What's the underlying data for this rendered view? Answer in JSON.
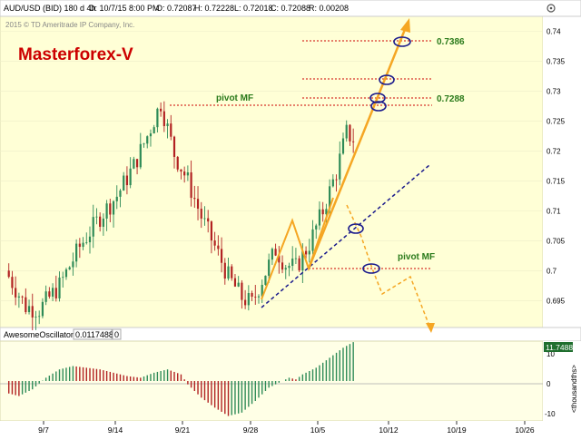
{
  "header": {
    "symbol": "AUD/USD (BID) 180 d 4h",
    "date": "D: 10/7/15 8:00 PM",
    "open": "O: 0.72087",
    "high": "H: 0.72228",
    "low": "L: 0.72018",
    "close": "C: 0.72088",
    "range": "R: 0.00208",
    "copyright": "2015 © TD Ameritrade IP Company, Inc."
  },
  "brand": {
    "text": "Masterforex-V",
    "color": "#cc0000"
  },
  "annotations": {
    "pivot_top": "pivot MF",
    "pivot_bottom": "pivot MF",
    "level_high": "0.7386",
    "level_mid": "0.7288"
  },
  "colors": {
    "price_bg": "#ffffd6",
    "osc_bg": "#ffffe6",
    "up_bar": "#2e8b57",
    "down_bar": "#b22222",
    "fib_line": "#cc0000",
    "projection": "#f5a623",
    "trendline": "#1a1a8c",
    "label_green": "#2a7a1a",
    "badge_bg": "#1f6e2e"
  },
  "oscillator": {
    "title": "AwesomeOscillator",
    "value": "0.0117488",
    "zero": "0",
    "badge": "11.7488",
    "axis_unit": "<thousandths>",
    "ticks": [
      "10",
      "0",
      "-10"
    ]
  },
  "chart_data": {
    "type": "candlestick",
    "symbol": "AUD/USD (BID)",
    "timeframe": "4h",
    "ylim": [
      0.6905,
      0.7425
    ],
    "yticks": [
      "0.74",
      "0.735",
      "0.73",
      "0.725",
      "0.72",
      "0.715",
      "0.71",
      "0.705",
      "0.7",
      "0.695"
    ],
    "xticks": [
      "9/7",
      "9/14",
      "9/21",
      "9/28",
      "10/5",
      "10/12",
      "10/19",
      "10/26"
    ],
    "price_keyframes": [
      [
        0,
        0.7
      ],
      [
        6,
        0.694
      ],
      [
        10,
        0.6935
      ],
      [
        16,
        0.6975
      ],
      [
        22,
        0.704
      ],
      [
        28,
        0.709
      ],
      [
        33,
        0.7125
      ],
      [
        38,
        0.7175
      ],
      [
        42,
        0.7225
      ],
      [
        46,
        0.728
      ],
      [
        50,
        0.7195
      ],
      [
        54,
        0.715
      ],
      [
        58,
        0.709
      ],
      [
        62,
        0.704
      ],
      [
        66,
        0.699
      ],
      [
        70,
        0.6955
      ],
      [
        73,
        0.6945
      ],
      [
        76,
        0.6985
      ],
      [
        80,
        0.7035
      ],
      [
        83,
        0.701
      ],
      [
        86,
        0.7005
      ],
      [
        90,
        0.7045
      ],
      [
        94,
        0.71
      ],
      [
        98,
        0.7165
      ],
      [
        101,
        0.723
      ],
      [
        103,
        0.722
      ]
    ],
    "oscillator_values": [
      [
        0,
        -3.5
      ],
      [
        4,
        -4.5
      ],
      [
        8,
        -2.5
      ],
      [
        12,
        1.0
      ],
      [
        16,
        3.5
      ],
      [
        20,
        4.5
      ],
      [
        24,
        4.0
      ],
      [
        28,
        3.5
      ],
      [
        32,
        2.5
      ],
      [
        36,
        1.5
      ],
      [
        40,
        1.0
      ],
      [
        44,
        2.5
      ],
      [
        48,
        3.5
      ],
      [
        52,
        2.0
      ],
      [
        54,
        -1.0
      ],
      [
        58,
        -5.0
      ],
      [
        62,
        -8.0
      ],
      [
        66,
        -10.5
      ],
      [
        70,
        -9.5
      ],
      [
        74,
        -6.0
      ],
      [
        78,
        -2.0
      ],
      [
        82,
        0.0
      ],
      [
        84,
        1.0
      ],
      [
        86,
        0.5
      ],
      [
        88,
        2.0
      ],
      [
        92,
        4.0
      ],
      [
        96,
        7.0
      ],
      [
        100,
        10.0
      ],
      [
        103,
        11.7
      ]
    ],
    "osc_ylim": [
      -12,
      12
    ],
    "levels": [
      0.7386,
      0.7288
    ],
    "pivot_levels": [
      0.7283,
      0.7003
    ]
  }
}
